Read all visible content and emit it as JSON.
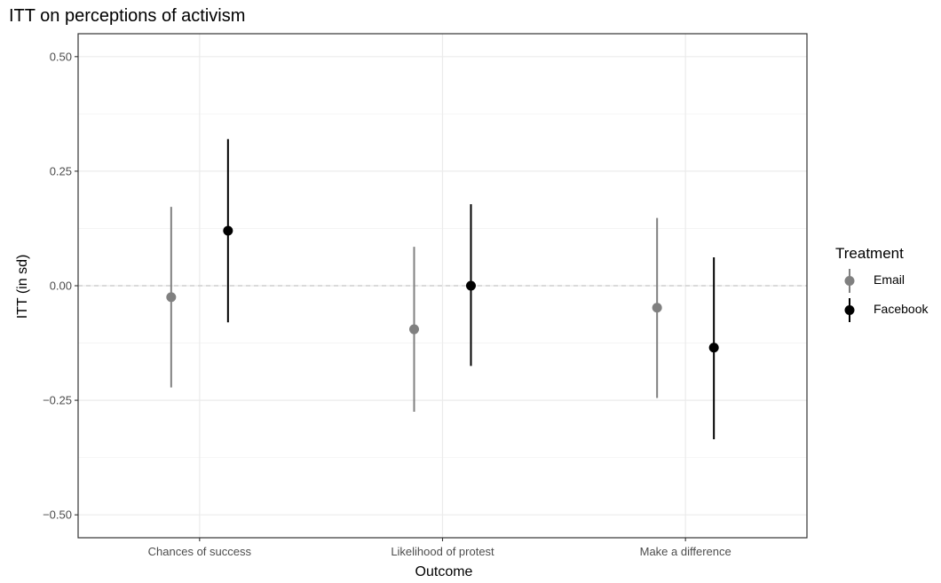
{
  "chart_data": {
    "type": "scatter",
    "title": "ITT on perceptions of activism",
    "xlabel": "Outcome",
    "ylabel": "ITT (in sd)",
    "categories": [
      "Chances of success",
      "Likelihood of protest",
      "Make a difference"
    ],
    "ylim": [
      -0.55,
      0.55
    ],
    "yticks": [
      0.5,
      0.25,
      0.0,
      -0.25,
      -0.5
    ],
    "ytick_labels": [
      "0.50",
      "0.25",
      "0.00",
      "−0.25",
      "−0.50"
    ],
    "grid": true,
    "reference_line": 0,
    "legend": {
      "title": "Treatment",
      "position": "right"
    },
    "series": [
      {
        "name": "Email",
        "color": "#808080",
        "values": [
          -0.025,
          -0.095,
          -0.048
        ],
        "lower": [
          -0.222,
          -0.275,
          -0.245
        ],
        "upper": [
          0.172,
          0.085,
          0.148
        ]
      },
      {
        "name": "Facebook",
        "color": "#000000",
        "values": [
          0.12,
          0.0,
          -0.135
        ],
        "lower": [
          -0.08,
          -0.175,
          -0.335
        ],
        "upper": [
          0.32,
          0.178,
          0.062
        ]
      }
    ]
  }
}
